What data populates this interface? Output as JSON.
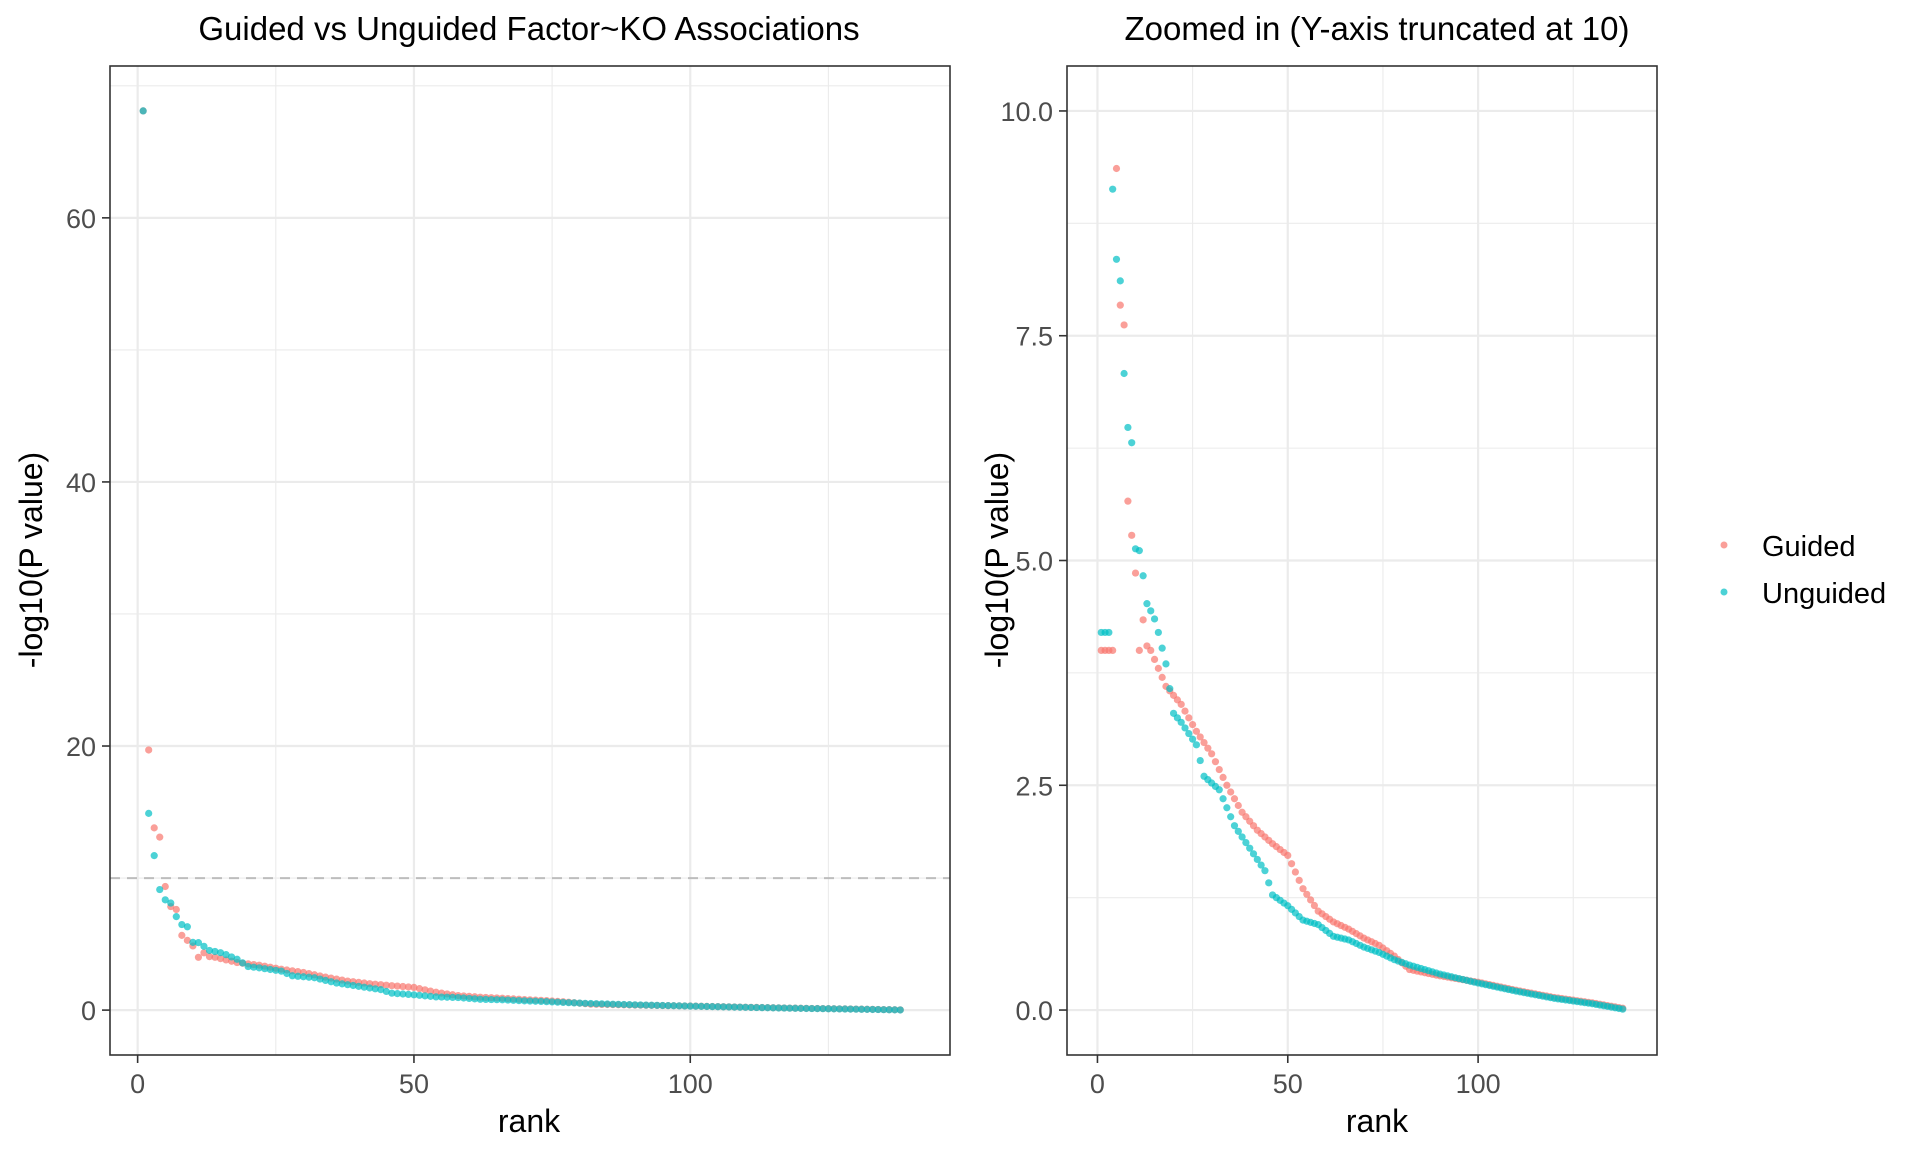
{
  "legend": {
    "position": "right",
    "items": [
      {
        "label": "Guided",
        "color": "#F8766D"
      },
      {
        "label": "Unguided",
        "color": "#00BFC4"
      }
    ]
  },
  "chart_data": [
    {
      "type": "scatter",
      "title": "Guided vs Unguided Factor~KO Associations",
      "xlabel": "rank",
      "ylabel": "-log10(P value)",
      "xlim": [
        -5,
        147
      ],
      "ylim": [
        -3.4,
        71.5
      ],
      "xticks": [
        0,
        50,
        100
      ],
      "yticks": [
        0,
        20,
        40,
        60
      ],
      "yticklabels": [
        "0",
        "20",
        "40",
        "60"
      ],
      "grid": true,
      "reference_line": {
        "y": 10,
        "style": "dashed",
        "color": "#bdbdbd"
      },
      "series": [
        {
          "name": "Guided",
          "color": "#F8766D",
          "points": [
            [
              1,
              68.1
            ],
            [
              2,
              19.7
            ],
            [
              3,
              13.8
            ],
            [
              4,
              13.1
            ],
            [
              5,
              9.36
            ],
            [
              6,
              7.84
            ],
            [
              7,
              7.62
            ],
            [
              8,
              5.66
            ],
            [
              9,
              5.28
            ],
            [
              10,
              4.86
            ],
            [
              12,
              4.34
            ],
            [
              13,
              4.05
            ]
          ]
        },
        {
          "name": "Unguided",
          "color": "#00BFC4",
          "points": [
            [
              1,
              68.1
            ],
            [
              2,
              14.9
            ],
            [
              3,
              11.7
            ],
            [
              4,
              9.13
            ],
            [
              5,
              8.35
            ],
            [
              6,
              8.11
            ],
            [
              7,
              7.08
            ],
            [
              8,
              6.48
            ],
            [
              9,
              6.31
            ],
            [
              10,
              5.13
            ],
            [
              11,
              5.11
            ],
            [
              12,
              4.83
            ],
            [
              13,
              4.52
            ],
            [
              14,
              4.44
            ],
            [
              15,
              4.35
            ]
          ]
        }
      ]
    },
    {
      "type": "scatter",
      "title": "Zoomed in (Y-axis truncated at 10)",
      "xlabel": "rank",
      "ylabel": "-log10(P value)",
      "xlim": [
        -8,
        147
      ],
      "ylim": [
        -0.5,
        10.5
      ],
      "xticks": [
        0,
        50,
        100
      ],
      "yticks": [
        0,
        2.5,
        5,
        7.5,
        10
      ],
      "yticklabels": [
        "0.0",
        "2.5",
        "5.0",
        "7.5",
        "10.0"
      ],
      "grid": true,
      "series": [
        {
          "name": "Guided",
          "color": "#F8766D",
          "points": [
            [
              5,
              9.36
            ],
            [
              6,
              7.84
            ],
            [
              7,
              7.62
            ],
            [
              8,
              5.66
            ],
            [
              9,
              5.28
            ],
            [
              10,
              4.86
            ],
            [
              12,
              4.34
            ],
            [
              13,
              4.05
            ]
          ]
        },
        {
          "name": "Unguided",
          "color": "#00BFC4",
          "points": [
            [
              4,
              9.13
            ],
            [
              5,
              8.35
            ],
            [
              6,
              8.11
            ],
            [
              7,
              7.08
            ],
            [
              8,
              6.48
            ],
            [
              9,
              6.31
            ],
            [
              10,
              5.13
            ],
            [
              11,
              5.11
            ],
            [
              12,
              4.83
            ],
            [
              13,
              4.52
            ],
            [
              14,
              4.44
            ],
            [
              15,
              4.35
            ]
          ]
        }
      ]
    }
  ]
}
